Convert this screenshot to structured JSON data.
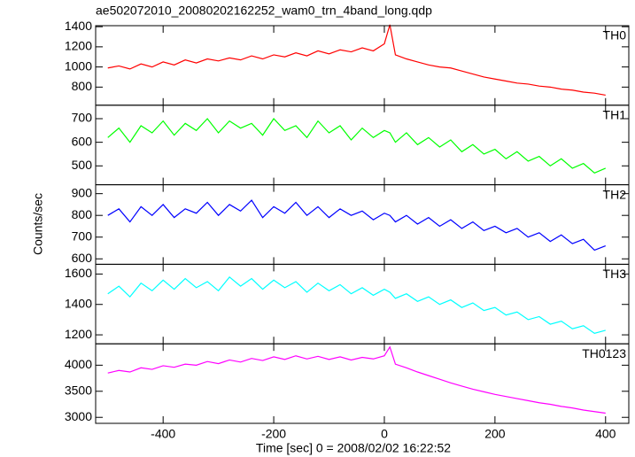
{
  "chart_data": {
    "type": "line",
    "title": "ae502072010_20080202162252_wam0_trn_4band_long.qdp",
    "xlabel": "Time [sec] 0 = 2008/02/02 16:22:52",
    "ylabel": "Counts/sec",
    "xlim": [
      -522,
      442
    ],
    "xticks": [
      -400,
      -200,
      0,
      200,
      400
    ],
    "x": [
      -500,
      -480,
      -460,
      -440,
      -420,
      -400,
      -380,
      -360,
      -340,
      -320,
      -300,
      -280,
      -260,
      -240,
      -220,
      -200,
      -180,
      -160,
      -140,
      -120,
      -100,
      -80,
      -60,
      -40,
      -20,
      0,
      10,
      20,
      40,
      60,
      80,
      100,
      120,
      140,
      160,
      180,
      200,
      220,
      240,
      260,
      280,
      300,
      320,
      340,
      360,
      380,
      400
    ],
    "series": [
      {
        "name": "TH0",
        "color": "#ff0000",
        "ylim": [
          620,
          1410
        ],
        "yticks": [
          800,
          1000,
          1200,
          1400
        ],
        "values": [
          990,
          1010,
          980,
          1030,
          1000,
          1050,
          1020,
          1070,
          1040,
          1080,
          1060,
          1090,
          1070,
          1110,
          1080,
          1120,
          1100,
          1140,
          1110,
          1160,
          1130,
          1170,
          1150,
          1190,
          1160,
          1230,
          1420,
          1120,
          1080,
          1050,
          1020,
          1000,
          990,
          960,
          930,
          900,
          880,
          860,
          840,
          830,
          810,
          800,
          780,
          770,
          750,
          740,
          720
        ]
      },
      {
        "name": "TH1",
        "color": "#00ff00",
        "ylim": [
          420,
          757
        ],
        "yticks": [
          500,
          600,
          700
        ],
        "values": [
          620,
          660,
          600,
          670,
          640,
          690,
          630,
          680,
          650,
          700,
          640,
          690,
          660,
          680,
          630,
          700,
          650,
          670,
          620,
          690,
          640,
          670,
          610,
          660,
          620,
          650,
          640,
          600,
          640,
          590,
          620,
          580,
          610,
          560,
          590,
          550,
          570,
          530,
          560,
          520,
          540,
          500,
          530,
          490,
          510,
          470,
          490
        ]
      },
      {
        "name": "TH2",
        "color": "#0000ff",
        "ylim": [
          575,
          941
        ],
        "yticks": [
          600,
          700,
          800,
          900
        ],
        "values": [
          800,
          830,
          770,
          840,
          800,
          850,
          790,
          830,
          810,
          860,
          800,
          850,
          820,
          870,
          790,
          840,
          810,
          860,
          800,
          840,
          790,
          830,
          800,
          820,
          780,
          810,
          800,
          770,
          800,
          760,
          790,
          750,
          780,
          740,
          770,
          730,
          750,
          720,
          740,
          700,
          720,
          680,
          710,
          670,
          690,
          640,
          660
        ]
      },
      {
        "name": "TH3",
        "color": "#00ffff",
        "ylim": [
          1141,
          1664
        ],
        "yticks": [
          1200,
          1400,
          1600
        ],
        "values": [
          1470,
          1520,
          1450,
          1540,
          1490,
          1560,
          1500,
          1570,
          1510,
          1550,
          1490,
          1580,
          1520,
          1570,
          1500,
          1560,
          1510,
          1550,
          1480,
          1540,
          1490,
          1530,
          1470,
          1510,
          1460,
          1500,
          1480,
          1440,
          1470,
          1420,
          1450,
          1400,
          1430,
          1380,
          1410,
          1360,
          1380,
          1330,
          1350,
          1300,
          1320,
          1270,
          1290,
          1240,
          1260,
          1210,
          1230
        ]
      },
      {
        "name": "TH0123",
        "color": "#ff00ff",
        "ylim": [
          2885,
          4410
        ],
        "yticks": [
          3000,
          3500,
          4000
        ],
        "values": [
          3850,
          3900,
          3870,
          3950,
          3920,
          3990,
          3960,
          4020,
          4000,
          4070,
          4030,
          4100,
          4060,
          4130,
          4090,
          4160,
          4110,
          4180,
          4120,
          4170,
          4110,
          4160,
          4100,
          4150,
          4120,
          4180,
          4350,
          4020,
          3950,
          3870,
          3800,
          3730,
          3660,
          3600,
          3540,
          3490,
          3440,
          3400,
          3360,
          3320,
          3280,
          3250,
          3210,
          3180,
          3140,
          3110,
          3080
        ]
      }
    ]
  }
}
